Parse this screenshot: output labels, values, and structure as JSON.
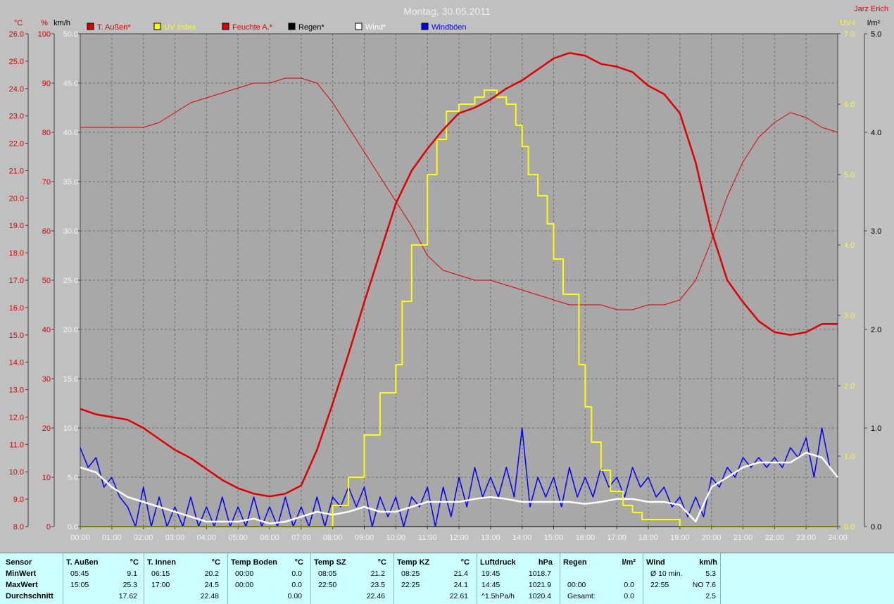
{
  "title": "Montag, 30.05.2011",
  "author": "Jarz Erich",
  "colors": {
    "temp": "#e00000",
    "uv": "#ffff00",
    "humidity": "#e00000",
    "rain": "#000000",
    "wind": "#ffffff",
    "gust": "#0000ff",
    "plot_bg": "#a8a8a8",
    "grid": "#6e6e6e"
  },
  "axes_units": {
    "temp": "°C",
    "humidity": "%",
    "wind": "km/h",
    "uv": "UV-I",
    "rain": "l/m²"
  },
  "legend": [
    {
      "label": "T. Außen*",
      "color": "#e00000"
    },
    {
      "label": "UV Index",
      "color": "#ffff00"
    },
    {
      "label": "Feuchte A.*",
      "color": "#e00000"
    },
    {
      "label": "Regen*",
      "color": "#000000"
    },
    {
      "label": "Wind*",
      "color": "#ffffff"
    },
    {
      "label": "Windböen",
      "color": "#0000ff"
    }
  ],
  "chart_data": {
    "type": "line",
    "title": "Montag, 30.05.2011",
    "x_ticks": [
      "00:00",
      "01:00",
      "02:00",
      "03:00",
      "04:00",
      "05:00",
      "06:00",
      "07:00",
      "08:00",
      "09:00",
      "10:00",
      "11:00",
      "12:00",
      "13:00",
      "14:00",
      "15:00",
      "16:00",
      "17:00",
      "18:00",
      "19:00",
      "20:00",
      "21:00",
      "22:00",
      "23:00",
      "24:00"
    ],
    "y_temp_ticks": [
      "8.0",
      "9.0",
      "10.0",
      "11.0",
      "12.0",
      "13.0",
      "14.0",
      "15.0",
      "16.0",
      "17.0",
      "18.0",
      "19.0",
      "20.0",
      "21.0",
      "22.0",
      "23.0",
      "24.0",
      "25.0",
      "26.0"
    ],
    "y_hum_ticks": [
      "0",
      "10",
      "20",
      "30",
      "40",
      "50",
      "60",
      "70",
      "80",
      "90",
      "100"
    ],
    "y_wind_ticks": [
      "0.0",
      "5.0",
      "10.0",
      "15.0",
      "20.0",
      "25.0",
      "30.0",
      "35.0",
      "40.0",
      "45.0",
      "50.0"
    ],
    "y_uv_ticks": [
      "0.0",
      "1.0",
      "2.0",
      "3.0",
      "4.0",
      "5.0",
      "6.0",
      "7.0"
    ],
    "y_rain_ticks": [
      "0.0",
      "1.0",
      "2.0",
      "3.0",
      "4.0",
      "5.0"
    ],
    "ylim_temp": [
      8,
      26
    ],
    "ylim_hum": [
      0,
      100
    ],
    "ylim_wind": [
      0,
      50
    ],
    "ylim_uv": [
      0,
      7
    ],
    "ylim_rain": [
      0,
      5
    ],
    "xlim_hours": [
      0,
      24
    ],
    "series": [
      {
        "name": "T. Außen*",
        "axis": "temp",
        "color": "#e00000",
        "x": [
          0,
          0.5,
          1,
          1.5,
          2,
          2.5,
          3,
          3.5,
          4,
          4.5,
          5,
          5.5,
          6,
          6.5,
          7,
          7.5,
          8,
          8.5,
          9,
          9.5,
          10,
          10.5,
          11,
          11.5,
          12,
          12.5,
          13,
          13.5,
          14,
          14.5,
          15,
          15.5,
          16,
          16.5,
          17,
          17.5,
          18,
          18.5,
          19,
          19.5,
          20,
          20.5,
          21,
          21.5,
          22,
          22.5,
          23,
          23.5,
          24
        ],
        "y": [
          12.3,
          12.1,
          12.0,
          11.9,
          11.6,
          11.2,
          10.8,
          10.5,
          10.1,
          9.7,
          9.4,
          9.2,
          9.1,
          9.2,
          9.5,
          10.8,
          12.5,
          14.3,
          16.2,
          18.0,
          19.8,
          21.0,
          21.8,
          22.5,
          23.1,
          23.3,
          23.6,
          24.0,
          24.3,
          24.7,
          25.1,
          25.3,
          25.2,
          24.9,
          24.8,
          24.6,
          24.1,
          23.8,
          23.1,
          21.3,
          18.8,
          17.0,
          16.2,
          15.5,
          15.1,
          15.0,
          15.1,
          15.4,
          15.4
        ]
      },
      {
        "name": "Feuchte A.*",
        "axis": "hum",
        "color": "#e00000",
        "x": [
          0,
          0.5,
          1,
          1.5,
          2,
          2.5,
          3,
          3.5,
          4,
          4.5,
          5,
          5.5,
          6,
          6.5,
          7,
          7.5,
          8,
          8.5,
          9,
          9.5,
          10,
          10.5,
          11,
          11.5,
          12,
          12.5,
          13,
          13.5,
          14,
          14.5,
          15,
          15.5,
          16,
          16.5,
          17,
          17.5,
          18,
          18.5,
          19,
          19.5,
          20,
          20.5,
          21,
          21.5,
          22,
          22.5,
          23,
          23.5,
          24
        ],
        "y": [
          81,
          81,
          81,
          81,
          81,
          82,
          84,
          86,
          87,
          88,
          89,
          90,
          90,
          91,
          91,
          90,
          86,
          81,
          76,
          71,
          66,
          61,
          55,
          52,
          51,
          50,
          50,
          49,
          48,
          47,
          46,
          45,
          45,
          45,
          44,
          44,
          45,
          45,
          46,
          50,
          58,
          67,
          74,
          79,
          82,
          84,
          83,
          81,
          80
        ]
      },
      {
        "name": "UV Index",
        "axis": "uv",
        "color": "#ffff00",
        "x": [
          0,
          7.6,
          8,
          8.5,
          9,
          9.5,
          10,
          10.2,
          10.5,
          11,
          11.3,
          11.6,
          12,
          12.5,
          12.8,
          13,
          13.2,
          13.5,
          13.8,
          14,
          14.2,
          14.5,
          14.8,
          15,
          15.3,
          15.8,
          16,
          16.2,
          16.5,
          16.8,
          17.2,
          17.5,
          17.8,
          18,
          18.5,
          19,
          19.2,
          24
        ],
        "y": [
          0,
          0,
          0.3,
          0.7,
          1.3,
          1.9,
          2.3,
          3.2,
          4.0,
          5.0,
          5.5,
          5.9,
          6.0,
          6.1,
          6.2,
          6.2,
          6.1,
          6.0,
          5.7,
          5.4,
          5.0,
          4.7,
          4.3,
          3.8,
          3.3,
          2.3,
          1.7,
          1.2,
          0.8,
          0.5,
          0.3,
          0.2,
          0.1,
          0.1,
          0.1,
          0.0,
          0,
          0
        ]
      },
      {
        "name": "Wind*",
        "axis": "wind",
        "color": "#ffffff",
        "x": [
          0,
          0.5,
          1,
          1.5,
          2,
          2.5,
          3,
          3.5,
          4,
          4.5,
          5,
          5.5,
          6,
          6.5,
          7,
          7.5,
          8,
          8.5,
          9,
          9.5,
          10,
          10.5,
          11,
          11.5,
          12,
          12.5,
          13,
          13.5,
          14,
          14.5,
          15,
          15.5,
          16,
          16.5,
          17,
          17.5,
          18,
          18.5,
          19,
          19.5,
          20,
          20.5,
          21,
          21.5,
          22,
          22.5,
          23,
          23.5,
          24
        ],
        "y": [
          6,
          5.5,
          4,
          3,
          2.5,
          2,
          1.5,
          1,
          0.5,
          0.5,
          0.5,
          0.8,
          0.3,
          0.5,
          1,
          1.5,
          1.2,
          1.5,
          2,
          1.5,
          1.5,
          2,
          2.5,
          2.5,
          2.5,
          2.8,
          3,
          2.8,
          2.5,
          2.5,
          2.5,
          2.5,
          2.3,
          2.5,
          2.8,
          2.8,
          2.5,
          2.5,
          2.2,
          0.5,
          4,
          5,
          6,
          6.5,
          6.5,
          6.5,
          7.5,
          7,
          5
        ]
      },
      {
        "name": "Windböen",
        "axis": "wind",
        "color": "#0000ff",
        "x": [
          0,
          0.25,
          0.5,
          0.75,
          1,
          1.25,
          1.5,
          1.75,
          2,
          2.25,
          2.5,
          2.75,
          3,
          3.25,
          3.5,
          3.75,
          4,
          4.25,
          4.5,
          4.75,
          5,
          5.25,
          5.5,
          5.75,
          6,
          6.25,
          6.5,
          6.75,
          7,
          7.25,
          7.5,
          7.75,
          8,
          8.25,
          8.5,
          8.75,
          9,
          9.25,
          9.5,
          9.75,
          10,
          10.25,
          10.5,
          10.75,
          11,
          11.25,
          11.5,
          11.75,
          12,
          12.25,
          12.5,
          12.75,
          13,
          13.25,
          13.5,
          13.75,
          14,
          14.25,
          14.5,
          14.75,
          15,
          15.25,
          15.5,
          15.75,
          16,
          16.25,
          16.5,
          16.75,
          17,
          17.25,
          17.5,
          17.75,
          18,
          18.25,
          18.5,
          18.75,
          19,
          19.25,
          19.5,
          19.75,
          20,
          20.25,
          20.5,
          20.75,
          21,
          21.25,
          21.5,
          21.75,
          22,
          22.25,
          22.5,
          22.75,
          23,
          23.25,
          23.5,
          23.75,
          24
        ],
        "y": [
          8,
          6,
          7,
          4,
          5,
          3,
          2,
          0,
          4,
          0,
          3,
          0,
          2,
          0,
          3,
          0,
          2,
          0,
          3,
          0,
          2,
          0,
          3,
          0,
          2,
          0,
          3,
          0,
          2,
          0,
          3,
          0,
          3,
          2,
          4,
          2,
          4,
          0,
          3,
          1,
          3,
          0,
          3,
          2,
          4,
          0,
          4,
          1,
          5,
          2,
          6,
          3,
          5,
          3,
          6,
          3,
          10,
          2,
          5,
          3,
          5,
          2,
          6,
          3,
          5,
          3,
          6,
          4,
          5,
          3,
          6,
          4,
          5,
          3,
          4,
          2,
          3,
          1,
          3,
          1,
          5,
          4,
          6,
          5,
          7,
          6,
          7,
          6,
          7,
          6,
          8,
          7,
          9,
          5,
          10,
          6,
          5
        ]
      }
    ]
  },
  "stats": {
    "header_label": "Sensor",
    "rows": [
      "MinWert",
      "MaxWert",
      "Durchschnitt"
    ],
    "columns": [
      {
        "title": "T. Außen",
        "unit": "°C",
        "rows": [
          [
            "05:45",
            "9.1"
          ],
          [
            "15:05",
            "25.3"
          ],
          [
            "",
            "17.62"
          ]
        ]
      },
      {
        "title": "T. Innen",
        "unit": "°C",
        "rows": [
          [
            "06:15",
            "20.2"
          ],
          [
            "17:00",
            "24.5"
          ],
          [
            "",
            "22.48"
          ]
        ]
      },
      {
        "title": "Temp Boden",
        "unit": "°C",
        "rows": [
          [
            "00:00",
            "0.0"
          ],
          [
            "00:00",
            "0.0"
          ],
          [
            "",
            "0.00"
          ]
        ]
      },
      {
        "title": "Temp SZ",
        "unit": "°C",
        "rows": [
          [
            "08:05",
            "21.2"
          ],
          [
            "22:50",
            "23.5"
          ],
          [
            "",
            "22.46"
          ]
        ]
      },
      {
        "title": "Temp KZ",
        "unit": "°C",
        "rows": [
          [
            "08:25",
            "21.4"
          ],
          [
            "22:25",
            "24.1"
          ],
          [
            "",
            "22.61"
          ]
        ]
      },
      {
        "title": "Luftdruck",
        "unit": "hPa",
        "rows": [
          [
            "19:45",
            "1018.7"
          ],
          [
            "14:45",
            "1021.9"
          ],
          [
            "^1.5hPa/h",
            "1020.4"
          ]
        ]
      },
      {
        "title": "Regen",
        "unit": "l/m²",
        "rows": [
          [
            "",
            ""
          ],
          [
            "00:00",
            "0.0"
          ],
          [
            "Gesamt:",
            "0.0"
          ]
        ]
      },
      {
        "title": "Wind",
        "unit": "km/h",
        "rows": [
          [
            "Ø 10 min.",
            "5.3"
          ],
          [
            "22:55",
            "NO 7.6"
          ],
          [
            "",
            "2.5"
          ]
        ]
      }
    ]
  }
}
